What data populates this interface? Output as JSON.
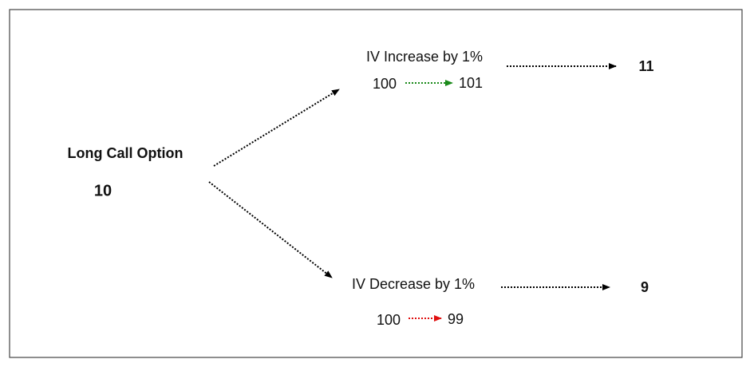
{
  "root": {
    "label": "Long Call Option",
    "value": "10"
  },
  "branches": [
    {
      "label": "IV Increase by 1%",
      "from": "100",
      "to": "101",
      "result": "11"
    },
    {
      "label": "IV Decrease by 1%",
      "from": "100",
      "to": "99",
      "result": "9"
    }
  ]
}
